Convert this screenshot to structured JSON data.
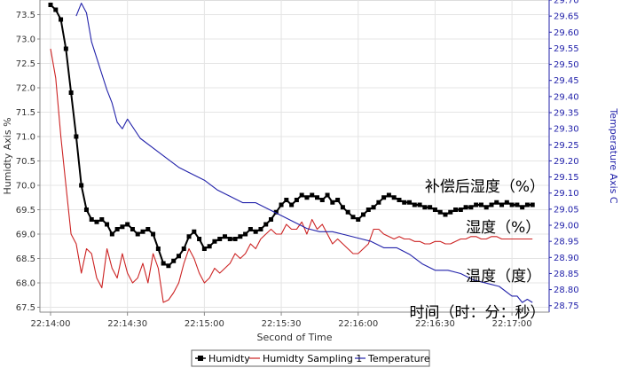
{
  "chart_data": {
    "type": "line",
    "xlabel": "Second of Time",
    "ylabel_left": "Humidty Axis %",
    "ylabel_right": "Temperature Axis C",
    "x_ticks": [
      "22:14:00",
      "22:14:30",
      "22:15:00",
      "22:15:30",
      "22:16:00",
      "22:16:30",
      "22:17:00"
    ],
    "x_range_seconds": [
      0,
      190
    ],
    "ylim_left": [
      67.4,
      73.8
    ],
    "ylim_right": [
      28.73,
      29.7
    ],
    "left_ticks": [
      "67.5",
      "68.0",
      "68.5",
      "69.0",
      "69.5",
      "70.0",
      "70.5",
      "71.0",
      "71.5",
      "72.0",
      "72.5",
      "73.0",
      "73.5"
    ],
    "right_ticks": [
      "28.75",
      "28.80",
      "28.85",
      "28.90",
      "28.95",
      "29.00",
      "29.05",
      "29.10",
      "29.15",
      "29.20",
      "29.25",
      "29.30",
      "29.35",
      "29.40",
      "29.45",
      "29.50",
      "29.55",
      "29.60",
      "29.65",
      "29.70"
    ],
    "grid": true,
    "legend_position": "bottom",
    "series": [
      {
        "name": "Humidty",
        "axis": "left",
        "color": "#000000",
        "marker": "square",
        "x": [
          0,
          2,
          4,
          6,
          8,
          10,
          12,
          14,
          16,
          18,
          20,
          22,
          24,
          26,
          28,
          30,
          32,
          34,
          36,
          38,
          40,
          42,
          44,
          46,
          48,
          50,
          52,
          54,
          56,
          58,
          60,
          62,
          64,
          66,
          68,
          70,
          72,
          74,
          76,
          78,
          80,
          82,
          84,
          86,
          88,
          90,
          92,
          94,
          96,
          98,
          100,
          102,
          104,
          106,
          108,
          110,
          112,
          114,
          116,
          118,
          120,
          122,
          124,
          126,
          128,
          130,
          132,
          134,
          136,
          138,
          140,
          142,
          144,
          146,
          148,
          150,
          152,
          154,
          156,
          158,
          160,
          162,
          164,
          166,
          168,
          170,
          172,
          174,
          176,
          178,
          180,
          182,
          184,
          186,
          188
        ],
        "values": [
          73.7,
          73.6,
          73.4,
          72.8,
          71.9,
          71.0,
          70.0,
          69.5,
          69.3,
          69.25,
          69.3,
          69.2,
          69.0,
          69.1,
          69.15,
          69.2,
          69.1,
          69.0,
          69.05,
          69.1,
          69.0,
          68.7,
          68.4,
          68.35,
          68.45,
          68.55,
          68.7,
          68.95,
          69.05,
          68.9,
          68.7,
          68.75,
          68.85,
          68.9,
          68.95,
          68.9,
          68.9,
          68.95,
          69.0,
          69.1,
          69.05,
          69.1,
          69.2,
          69.3,
          69.45,
          69.6,
          69.7,
          69.6,
          69.7,
          69.8,
          69.75,
          69.8,
          69.75,
          69.7,
          69.8,
          69.65,
          69.7,
          69.55,
          69.45,
          69.35,
          69.3,
          69.4,
          69.5,
          69.55,
          69.65,
          69.75,
          69.8,
          69.75,
          69.7,
          69.65,
          69.65,
          69.6,
          69.6,
          69.55,
          69.55,
          69.5,
          69.45,
          69.4,
          69.45,
          69.5,
          69.5,
          69.55,
          69.55,
          69.6,
          69.6,
          69.55,
          69.6,
          69.65,
          69.6,
          69.65,
          69.6,
          69.6,
          69.55,
          69.6,
          69.6
        ]
      },
      {
        "name": "Humidty Sampling 1",
        "axis": "left",
        "color": "#cc2222",
        "marker": "none",
        "x": [
          0,
          2,
          4,
          6,
          8,
          10,
          12,
          14,
          16,
          18,
          20,
          22,
          24,
          26,
          28,
          30,
          32,
          34,
          36,
          38,
          40,
          42,
          44,
          46,
          48,
          50,
          52,
          54,
          56,
          58,
          60,
          62,
          64,
          66,
          68,
          70,
          72,
          74,
          76,
          78,
          80,
          82,
          84,
          86,
          88,
          90,
          92,
          94,
          96,
          98,
          100,
          102,
          104,
          106,
          108,
          110,
          112,
          114,
          116,
          118,
          120,
          122,
          124,
          126,
          128,
          130,
          132,
          134,
          136,
          138,
          140,
          142,
          144,
          146,
          148,
          150,
          152,
          154,
          156,
          158,
          160,
          162,
          164,
          166,
          168,
          170,
          172,
          174,
          176,
          178,
          180,
          182,
          184,
          186,
          188
        ],
        "values": [
          72.8,
          72.2,
          71.0,
          70.0,
          69.0,
          68.8,
          68.2,
          68.7,
          68.6,
          68.1,
          67.9,
          68.7,
          68.3,
          68.1,
          68.6,
          68.2,
          68.0,
          68.1,
          68.4,
          68.0,
          68.6,
          68.3,
          67.6,
          67.65,
          67.8,
          68.0,
          68.4,
          68.7,
          68.5,
          68.2,
          68.0,
          68.1,
          68.3,
          68.2,
          68.3,
          68.4,
          68.6,
          68.5,
          68.6,
          68.8,
          68.7,
          68.9,
          69.0,
          69.1,
          69.0,
          69.0,
          69.2,
          69.1,
          69.1,
          69.25,
          69.0,
          69.3,
          69.1,
          69.2,
          69.0,
          68.8,
          68.9,
          68.8,
          68.7,
          68.6,
          68.6,
          68.7,
          68.8,
          69.1,
          69.1,
          69.0,
          68.95,
          68.9,
          68.95,
          68.9,
          68.9,
          68.85,
          68.85,
          68.8,
          68.8,
          68.85,
          68.85,
          68.8,
          68.8,
          68.85,
          68.9,
          68.9,
          68.95,
          68.95,
          68.9,
          68.9,
          68.95,
          68.95,
          68.9,
          68.9,
          68.9,
          68.9,
          68.9,
          68.9,
          68.9
        ]
      },
      {
        "name": "Temperature",
        "axis": "right",
        "color": "#2222aa",
        "marker": "none",
        "x": [
          10,
          12,
          14,
          16,
          18,
          20,
          22,
          24,
          26,
          28,
          30,
          35,
          40,
          45,
          50,
          55,
          60,
          65,
          70,
          75,
          80,
          85,
          90,
          95,
          100,
          105,
          110,
          115,
          120,
          125,
          130,
          135,
          140,
          145,
          150,
          155,
          160,
          165,
          170,
          175,
          180,
          182,
          184,
          186,
          188
        ],
        "values": [
          29.65,
          29.69,
          29.66,
          29.57,
          29.52,
          29.47,
          29.42,
          29.38,
          29.32,
          29.3,
          29.33,
          29.27,
          29.24,
          29.21,
          29.18,
          29.16,
          29.14,
          29.11,
          29.09,
          29.07,
          29.07,
          29.05,
          29.03,
          29.01,
          28.99,
          28.98,
          28.98,
          28.97,
          28.96,
          28.95,
          28.93,
          28.93,
          28.91,
          28.88,
          28.86,
          28.86,
          28.85,
          28.83,
          28.82,
          28.81,
          28.78,
          28.78,
          28.76,
          28.77,
          28.76
        ]
      }
    ],
    "annotations": [
      {
        "text": "补偿后湿度（%）",
        "x": 146,
        "y_left": 69.98
      },
      {
        "text": "湿度（%）",
        "x": 162,
        "y_left": 69.15
      },
      {
        "text": "温度（度）",
        "x": 162,
        "y_left": 68.15
      },
      {
        "text": "时间（时：分：秒）",
        "x": 140,
        "y_left": 67.4
      }
    ]
  }
}
